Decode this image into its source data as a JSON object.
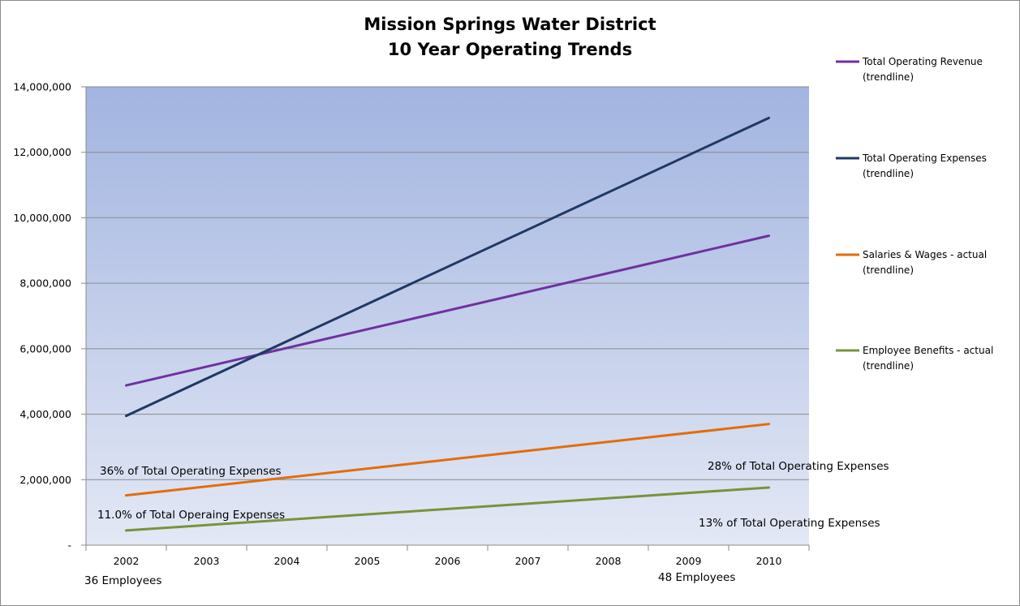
{
  "chart_data": {
    "type": "line",
    "title": "Mission Springs Water District",
    "subtitle": "10 Year Operating Trends",
    "xlabel": "",
    "ylabel": "",
    "categories": [
      "2002",
      "2003",
      "2004",
      "2005",
      "2006",
      "2007",
      "2008",
      "2009",
      "2010"
    ],
    "y_ticks": [
      "-",
      "2,000,000",
      "4,000,000",
      "6,000,000",
      "8,000,000",
      "10,000,000",
      "12,000,000",
      "14,000,000"
    ],
    "ylim": [
      0,
      14000000
    ],
    "grid": true,
    "legend_position": "right",
    "series": [
      {
        "name": "Total Operating Revenue",
        "legend_sub": "(trendline)",
        "color": "#7030a0",
        "start": 4880000,
        "end": 9450000
      },
      {
        "name": "Total Operating Expenses",
        "legend_sub": "(trendline)",
        "color": "#1f3864",
        "start": 3950000,
        "end": 13050000
      },
      {
        "name": "Salaries & Wages - actual",
        "legend_sub": "(trendline)",
        "color": "#e46c0a",
        "start": 1520000,
        "end": 3700000
      },
      {
        "name": "Employee Benefits - actual",
        "legend_sub": "(trendline)",
        "color": "#77933c",
        "start": 450000,
        "end": 1760000
      }
    ],
    "annotations": {
      "salaries_2002": "36% of Total Operating Expenses",
      "salaries_2010": "28% of Total Operating Expenses",
      "benefits_2002": "11.0% of Total Operaing Expenses",
      "benefits_2010": "13% of  Total Operating Expenses",
      "employees_2002": "36 Employees",
      "employees_2010": "48 Employees"
    }
  }
}
